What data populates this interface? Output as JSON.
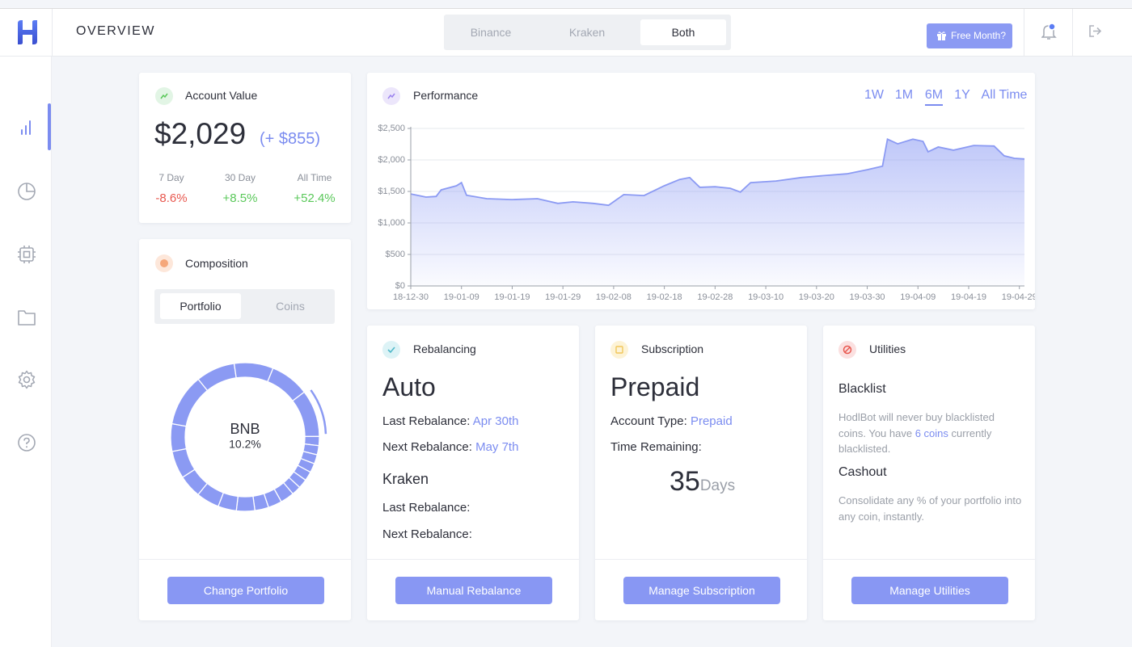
{
  "header": {
    "title": "OVERVIEW",
    "exchanges": [
      "Binance",
      "Kraken",
      "Both"
    ],
    "selected_exchange": 2,
    "promo_button": "Free Month?"
  },
  "account_value": {
    "title": "Account Value",
    "value": "$2,029",
    "change": "(+ $855)",
    "periods": [
      {
        "label": "7 Day",
        "change": "-8.6%"
      },
      {
        "label": "30 Day",
        "change": "+8.5%"
      },
      {
        "label": "All Time",
        "change": "+52.4%"
      }
    ]
  },
  "composition": {
    "title": "Composition",
    "tabs": [
      "Portfolio",
      "Coins"
    ],
    "selected_tab": 0,
    "chart_data": {
      "type": "donut",
      "values": [
        8.5,
        8.5,
        8.5,
        10.2,
        2,
        2,
        2,
        2,
        2,
        2,
        2,
        3,
        3,
        3,
        4,
        4,
        5,
        5,
        6,
        6,
        11.3
      ],
      "selected": 3,
      "center_name": "BNB",
      "center_label": "10.2%",
      "color": "#8b9af3"
    },
    "button": "Change Portfolio"
  },
  "chart_data": {
    "type": "area",
    "title": "Performance",
    "ranges": [
      "1W",
      "1M",
      "6M",
      "1Y",
      "All Time"
    ],
    "selected_range": 2,
    "x": [
      "18-12-30",
      "19-01-02",
      "19-01-04",
      "19-01-05",
      "19-01-08",
      "19-01-09",
      "19-01-10",
      "19-01-14",
      "19-01-19",
      "19-01-24",
      "19-01-28",
      "19-01-31",
      "19-02-04",
      "19-02-07",
      "19-02-10",
      "19-02-14",
      "19-02-18",
      "19-02-21",
      "19-02-23",
      "19-02-25",
      "19-02-28",
      "19-03-03",
      "19-03-05",
      "19-03-07",
      "19-03-12",
      "19-03-17",
      "19-03-22",
      "19-03-26",
      "19-03-30",
      "19-04-02",
      "19-04-03",
      "19-04-05",
      "19-04-08",
      "19-04-10",
      "19-04-11",
      "19-04-13",
      "19-04-16",
      "19-04-20",
      "19-04-24",
      "19-04-26",
      "19-04-28",
      "19-04-30"
    ],
    "values": [
      1460,
      1410,
      1420,
      1525,
      1590,
      1640,
      1440,
      1385,
      1370,
      1385,
      1310,
      1335,
      1310,
      1280,
      1450,
      1435,
      1590,
      1690,
      1720,
      1565,
      1575,
      1550,
      1490,
      1640,
      1665,
      1720,
      1755,
      1780,
      1845,
      1900,
      2330,
      2255,
      2330,
      2295,
      2130,
      2205,
      2155,
      2230,
      2220,
      2065,
      2025,
      2015
    ],
    "xlim": [
      "18-12-30",
      "19-04-30"
    ],
    "xticks": [
      "18-12-30",
      "19-01-09",
      "19-01-19",
      "19-01-29",
      "19-02-08",
      "19-02-18",
      "19-02-28",
      "19-03-10",
      "19-03-20",
      "19-03-30",
      "19-04-09",
      "19-04-19",
      "19-04-29"
    ],
    "ylim": [
      0,
      2500
    ],
    "yticks": [
      {
        "value": 0,
        "label": "$0"
      },
      {
        "value": 500,
        "label": "$500"
      },
      {
        "value": 1000,
        "label": "$1,000"
      },
      {
        "value": 1500,
        "label": "$1,500"
      },
      {
        "value": 2000,
        "label": "$2,000"
      },
      {
        "value": 2500,
        "label": "$2,500"
      }
    ],
    "color": "#8b9af3",
    "grid": true
  },
  "rebalancing": {
    "title": "Rebalancing",
    "mode": "Auto",
    "rows": [
      {
        "label": "Last Rebalance:",
        "value": "Apr 30th"
      },
      {
        "label": "Next Rebalance:",
        "value": "May 7th"
      }
    ],
    "kraken": {
      "title": "Kraken",
      "rows": [
        "Last Rebalance:",
        "Next Rebalance:"
      ]
    },
    "button": "Manual Rebalance"
  },
  "subscription": {
    "title": "Subscription",
    "plan": "Prepaid",
    "account_type_label": "Account Type:",
    "account_type": "Prepaid",
    "time_label": "Time Remaining:",
    "days": 35,
    "days_unit": "Days",
    "button": "Manage Subscription"
  },
  "utilities": {
    "title": "Utilities",
    "blacklist_title": "Blacklist",
    "blacklist_text_before": "HodlBot will never buy blacklisted coins. You have",
    "blacklist_link": "6 coins",
    "blacklist_text_after": "currently blacklisted.",
    "cashout_title": "Cashout",
    "cashout_text": "Consolidate any % of your portfolio into any coin, instantly.",
    "button": "Manage Utilities"
  }
}
